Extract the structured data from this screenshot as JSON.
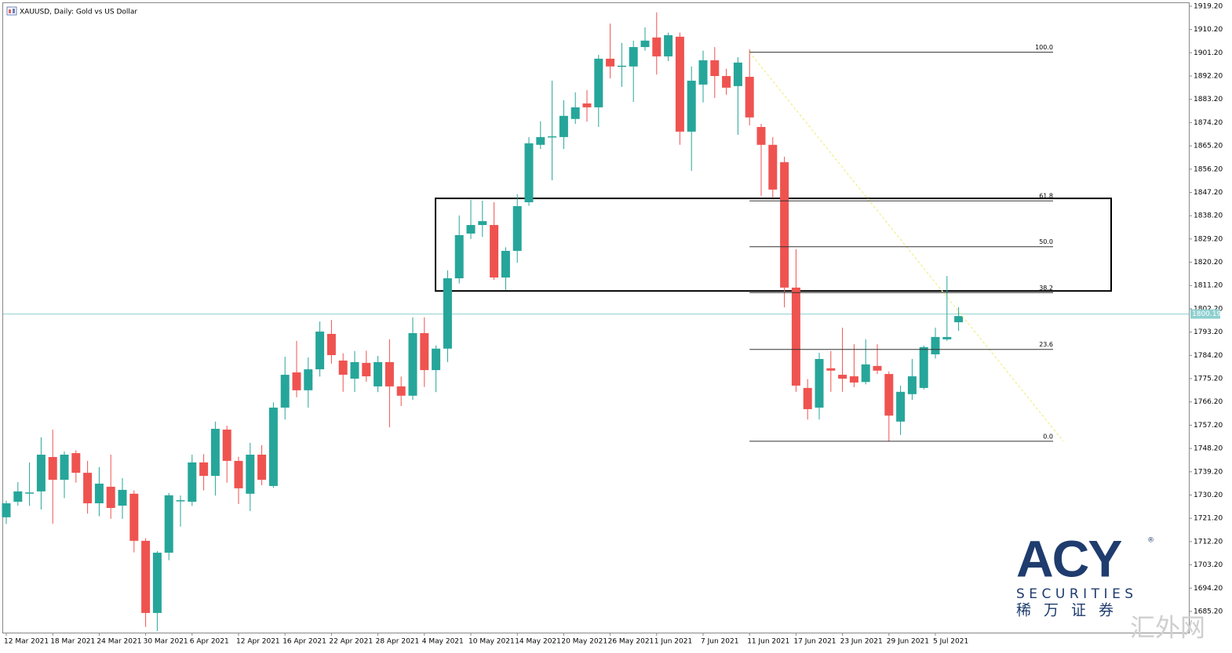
{
  "chart_data": {
    "type": "candlestick",
    "title": "XAUUSD, Daily: Gold vs US Dollar",
    "categories": [
      "12 Mar 2021",
      null,
      null,
      null,
      "18 Mar 2021",
      null,
      null,
      null,
      "24 Mar 2021",
      null,
      null,
      null,
      "30 Mar 2021",
      null,
      null,
      null,
      "6 Apr 2021",
      null,
      null,
      null,
      "12 Apr 2021",
      null,
      null,
      null,
      "16 Apr 2021",
      null,
      null,
      null,
      "22 Apr 2021",
      null,
      null,
      null,
      "28 Apr 2021",
      null,
      null,
      null,
      "4 May 2021",
      null,
      null,
      null,
      "10 May 2021",
      null,
      null,
      null,
      "14 May 2021",
      null,
      null,
      null,
      "20 May 2021",
      null,
      null,
      null,
      "26 May 2021",
      null,
      null,
      null,
      "1 Jun 2021",
      null,
      null,
      null,
      "7 Jun 2021",
      null,
      null,
      null,
      "11 Jun 2021",
      null,
      null,
      null,
      "17 Jun 2021",
      null,
      null,
      null,
      "23 Jun 2021",
      null,
      null,
      null,
      "29 Jun 2021",
      null,
      null,
      null,
      "5 Jul 2021",
      null,
      null
    ],
    "open": [
      1721.6,
      1727.6,
      1731.0,
      1731.6,
      1744.9,
      1736.1,
      1746.4,
      1738.8,
      1727.0,
      1733.4,
      1726.1,
      1730.7,
      1712.5,
      1684.6,
      1707.9,
      1728.0,
      1727.6,
      1742.8,
      1737.6,
      1755.5,
      1743.4,
      1730.7,
      1745.8,
      1733.7,
      1764.0,
      1777.6,
      1770.7,
      1778.8,
      1792.5,
      1782.2,
      1775.2,
      1781.3,
      1772.2,
      1781.6,
      1772.2,
      1768.6,
      1792.8,
      1778.5,
      1786.8,
      1814.0,
      1831.3,
      1834.6,
      1834.6,
      1814.3,
      1824.6,
      1843.4,
      1865.6,
      1868.6,
      1868.6,
      1875.6,
      1881.6,
      1880.1,
      1898.9,
      1895.9,
      1895.9,
      1903.4,
      1907.1,
      1899.8,
      1907.4,
      1870.7,
      1888.9,
      1898.3,
      1892.2,
      1888.3,
      1891.9,
      1872.5,
      1865.6,
      1858.9,
      1810.4,
      1771.6,
      1764.0,
      1779.2,
      1776.7,
      1776.1,
      1773.9,
      1780.1,
      1777.0,
      1758.6,
      1769.2,
      1771.6,
      1784.6,
      1790.4,
      1797.0
    ],
    "high": [
      1728.0,
      1735.2,
      1742.8,
      1752.5,
      1755.5,
      1747.0,
      1747.5,
      1743.4,
      1741.0,
      1745.8,
      1736.7,
      1732.0,
      1713.5,
      1708.5,
      1731.0,
      1730.0,
      1745.8,
      1746.0,
      1758.6,
      1757.0,
      1745.0,
      1750.4,
      1749.5,
      1766.0,
      1783.7,
      1789.8,
      1783.4,
      1797.3,
      1797.9,
      1785.0,
      1785.9,
      1786.0,
      1784.0,
      1790.4,
      1776.0,
      1798.9,
      1798.9,
      1788.0,
      1817.1,
      1838.3,
      1844.3,
      1844.0,
      1843.4,
      1826.0,
      1846.5,
      1868.6,
      1874.7,
      1890.4,
      1882.8,
      1885.9,
      1886.8,
      1900.4,
      1912.5,
      1905.0,
      1905.9,
      1911.0,
      1916.8,
      1909.0,
      1909.0,
      1895.9,
      1902.0,
      1903.4,
      1895.0,
      1899.5,
      1902.5,
      1873.7,
      1868.6,
      1861.0,
      1825.2,
      1775.0,
      1785.2,
      1785.9,
      1794.9,
      1788.5,
      1790.4,
      1788.5,
      1778.0,
      1772.5,
      1782.8,
      1788.0,
      1794.9,
      1814.9,
      1802.8
    ],
    "low": [
      1719.0,
      1726.1,
      1726.0,
      1724.6,
      1719.1,
      1729.0,
      1735.0,
      1723.0,
      1722.0,
      1721.0,
      1721.0,
      1708.0,
      1679.2,
      1677.6,
      1705.0,
      1718.0,
      1726.0,
      1732.0,
      1730.0,
      1735.0,
      1726.7,
      1724.0,
      1734.0,
      1733.0,
      1759.4,
      1768.0,
      1764.0,
      1776.0,
      1781.0,
      1770.1,
      1770.0,
      1774.0,
      1770.0,
      1756.4,
      1764.6,
      1767.0,
      1772.0,
      1770.0,
      1781.6,
      1812.0,
      1829.2,
      1830.0,
      1813.4,
      1809.5,
      1820.0,
      1842.0,
      1864.0,
      1851.9,
      1864.0,
      1873.7,
      1874.6,
      1872.5,
      1891.3,
      1888.0,
      1882.2,
      1902.0,
      1892.8,
      1898.0,
      1865.6,
      1855.5,
      1882.0,
      1883.7,
      1885.0,
      1869.5,
      1873.1,
      1845.9,
      1845.0,
      1802.8,
      1770.1,
      1759.4,
      1759.4,
      1770.1,
      1770.1,
      1771.9,
      1773.0,
      1777.0,
      1751.0,
      1753.4,
      1767.0,
      1771.0,
      1783.0,
      1789.8,
      1793.7
    ],
    "close": [
      1727.0,
      1731.6,
      1731.2,
      1745.8,
      1736.1,
      1745.8,
      1738.8,
      1727.0,
      1734.6,
      1725.2,
      1732.2,
      1712.5,
      1684.6,
      1707.9,
      1730.1,
      1728.2,
      1742.8,
      1737.6,
      1755.8,
      1743.4,
      1732.8,
      1745.8,
      1736.1,
      1764.0,
      1776.7,
      1770.7,
      1778.8,
      1793.4,
      1784.3,
      1776.7,
      1781.6,
      1776.1,
      1781.6,
      1772.2,
      1768.6,
      1792.8,
      1778.5,
      1786.8,
      1814.0,
      1830.7,
      1834.6,
      1836.1,
      1814.3,
      1824.6,
      1841.9,
      1866.2,
      1868.6,
      1868.9,
      1876.8,
      1880.1,
      1880.1,
      1898.9,
      1895.9,
      1896.2,
      1903.4,
      1905.9,
      1899.8,
      1908.0,
      1870.7,
      1890.4,
      1898.3,
      1892.2,
      1887.7,
      1897.4,
      1876.2,
      1865.6,
      1848.3,
      1810.4,
      1772.5,
      1763.4,
      1782.8,
      1778.3,
      1775.2,
      1773.7,
      1780.7,
      1778.3,
      1760.9,
      1770.1,
      1776.1,
      1787.4,
      1791.3,
      1791.3,
      1799.4
    ],
    "up_color": "#26a69a",
    "down_color": "#ef5350",
    "ylim": [
      1677.0,
      1921.6
    ],
    "yticks": [
      {
        "value": 1685.2,
        "label": "1685.20"
      },
      {
        "value": 1694.2,
        "label": "1694.20"
      },
      {
        "value": 1703.2,
        "label": "1703.20"
      },
      {
        "value": 1712.2,
        "label": "1712.20"
      },
      {
        "value": 1721.2,
        "label": "1721.20"
      },
      {
        "value": 1730.2,
        "label": "1730.20"
      },
      {
        "value": 1739.2,
        "label": "1739.20"
      },
      {
        "value": 1748.2,
        "label": "1748.20"
      },
      {
        "value": 1757.2,
        "label": "1757.20"
      },
      {
        "value": 1766.2,
        "label": "1766.20"
      },
      {
        "value": 1775.2,
        "label": "1775.20"
      },
      {
        "value": 1784.2,
        "label": "1784.20"
      },
      {
        "value": 1793.2,
        "label": "1793.20"
      },
      {
        "value": 1802.2,
        "label": "1802.20"
      },
      {
        "value": 1811.2,
        "label": "1811.20"
      },
      {
        "value": 1820.2,
        "label": "1820.20"
      },
      {
        "value": 1829.2,
        "label": "1829.20"
      },
      {
        "value": 1838.2,
        "label": "1838.20"
      },
      {
        "value": 1847.2,
        "label": "1847.20"
      },
      {
        "value": 1856.2,
        "label": "1856.20"
      },
      {
        "value": 1865.2,
        "label": "1865.20"
      },
      {
        "value": 1874.2,
        "label": "1874.20"
      },
      {
        "value": 1883.2,
        "label": "1883.20"
      },
      {
        "value": 1892.2,
        "label": "1892.20"
      },
      {
        "value": 1901.2,
        "label": "1901.20"
      },
      {
        "value": 1910.2,
        "label": "1910.20"
      },
      {
        "value": 1919.2,
        "label": "1919.20"
      }
    ],
    "current_price": {
      "value": 1800.19,
      "label": "1800.19",
      "color": "#8ecfcf"
    },
    "rectangle": {
      "high": 1844.9,
      "low": 1809.1
    },
    "fibonacci": {
      "high": 1901.4,
      "low": 1751.0,
      "levels": [
        {
          "value": 100,
          "label": "100.0"
        },
        {
          "value": 61.8,
          "label": "61.8"
        },
        {
          "value": 50,
          "label": "50.0"
        },
        {
          "value": 38.2,
          "label": "38.2"
        },
        {
          "value": 23.6,
          "label": "23.6"
        },
        {
          "value": 0,
          "label": "0.0"
        }
      ]
    }
  },
  "logo": {
    "brand": "ACY",
    "trademark": "®",
    "subtitle": "SECURITIES",
    "chinese": "稀万证券"
  },
  "watermark": "汇外网"
}
